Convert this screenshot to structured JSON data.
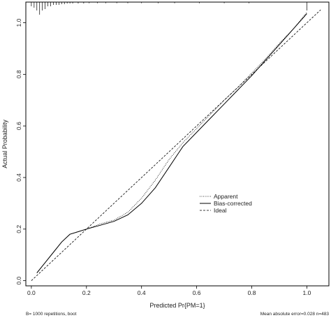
{
  "chart_data": {
    "type": "line",
    "xlabel": "Predicted Pr{PM=1}",
    "ylabel": "Actual Probability",
    "xlim": [
      -0.02,
      1.08
    ],
    "ylim": [
      -0.02,
      1.08
    ],
    "x_ticks": [
      0.0,
      0.2,
      0.4,
      0.6,
      0.8,
      1.0
    ],
    "x_tick_labels": [
      "0.0",
      "0.2",
      "0.4",
      "0.6",
      "0.8",
      "1.0"
    ],
    "y_ticks": [
      0.0,
      0.2,
      0.4,
      0.6,
      0.8,
      1.0
    ],
    "y_tick_labels": [
      "0.0",
      "0.2",
      "0.4",
      "0.6",
      "0.8",
      "1.0"
    ],
    "legend": {
      "placement": "center-right",
      "entries": [
        {
          "label": "Apparent",
          "style": "dotted"
        },
        {
          "label": "Bias-corrected",
          "style": "solid"
        },
        {
          "label": "Ideal",
          "style": "dashed"
        }
      ]
    },
    "series": [
      {
        "name": "Apparent",
        "style": "dotted",
        "x": [
          0.02,
          0.05,
          0.08,
          0.11,
          0.14,
          0.17,
          0.2,
          0.25,
          0.3,
          0.35,
          0.4,
          0.45,
          0.5,
          0.55,
          0.6,
          0.65,
          0.7,
          0.75,
          0.8,
          0.85,
          0.9,
          0.95,
          1.0
        ],
        "y": [
          0.03,
          0.07,
          0.11,
          0.15,
          0.18,
          0.19,
          0.2,
          0.22,
          0.235,
          0.265,
          0.32,
          0.39,
          0.47,
          0.535,
          0.59,
          0.645,
          0.7,
          0.75,
          0.805,
          0.86,
          0.92,
          0.975,
          1.04
        ]
      },
      {
        "name": "Bias-corrected",
        "style": "solid",
        "x": [
          0.02,
          0.05,
          0.08,
          0.11,
          0.14,
          0.17,
          0.2,
          0.25,
          0.3,
          0.35,
          0.4,
          0.45,
          0.5,
          0.55,
          0.6,
          0.65,
          0.7,
          0.75,
          0.8,
          0.85,
          0.9,
          0.95,
          1.0
        ],
        "y": [
          0.03,
          0.07,
          0.11,
          0.15,
          0.18,
          0.19,
          0.2,
          0.215,
          0.23,
          0.255,
          0.3,
          0.36,
          0.44,
          0.52,
          0.575,
          0.63,
          0.685,
          0.74,
          0.795,
          0.855,
          0.915,
          0.975,
          1.035
        ]
      },
      {
        "name": "Ideal",
        "style": "dashed",
        "x": [
          0.0,
          1.05
        ],
        "y": [
          0.0,
          1.05
        ]
      }
    ],
    "rug": [
      0.0,
      0.01,
      0.02,
      0.03,
      0.04,
      0.05,
      0.06,
      0.07,
      0.08,
      0.09,
      0.1,
      0.11,
      0.12,
      0.13,
      0.14,
      0.15,
      0.17,
      0.19,
      0.21,
      0.24,
      0.27,
      0.31,
      0.35,
      0.4,
      0.46,
      0.52,
      0.61,
      0.7,
      0.79,
      1.0
    ],
    "rug_heights": [
      0.3,
      0.4,
      0.6,
      0.9,
      0.6,
      0.5,
      0.3,
      0.3,
      0.2,
      0.2,
      0.2,
      0.15,
      0.15,
      0.1,
      0.1,
      0.1,
      0.1,
      0.1,
      0.08,
      0.08,
      0.08,
      0.08,
      0.08,
      0.08,
      0.08,
      0.08,
      0.08,
      0.08,
      0.08,
      0.6
    ]
  },
  "footnotes": {
    "left": "B= 1000 repetitions, boot",
    "right": "Mean absolute error=0.028 n=483"
  }
}
